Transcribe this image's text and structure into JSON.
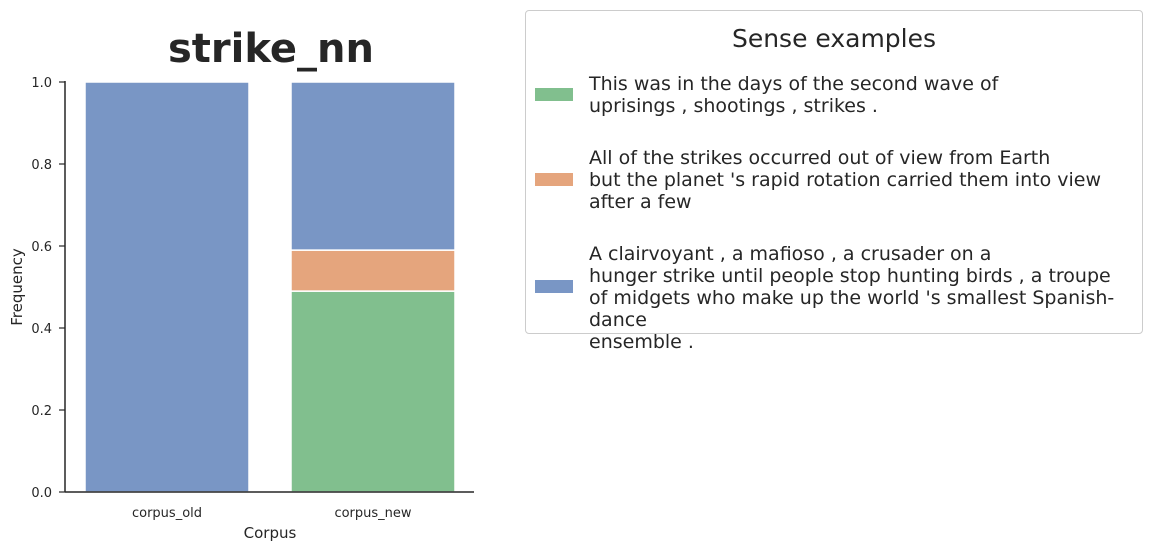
{
  "chart_data": {
    "type": "bar",
    "stacked": true,
    "title": "strike_nn",
    "xlabel": "Corpus",
    "ylabel": "Frequency",
    "ylim": [
      0,
      1.0
    ],
    "yticks": [
      "0.0",
      "0.2",
      "0.4",
      "0.6",
      "0.8",
      "1.0"
    ],
    "categories": [
      "corpus_old",
      "corpus_new"
    ],
    "grid": false,
    "legend_position": "right",
    "series": [
      {
        "values": [
          0.0,
          0.49
        ],
        "color": "#81bf8e"
      },
      {
        "values": [
          0.0,
          0.1
        ],
        "color": "#e5a57d"
      },
      {
        "values": [
          1.0,
          0.41
        ],
        "color": "#7996c5"
      }
    ]
  },
  "legend": {
    "title": "Sense examples",
    "entries": [
      {
        "color": "#81bf8e",
        "text": "This was in the days of the second wave of\nuprisings , shootings , strikes ."
      },
      {
        "color": "#e5a57d",
        "text": "All of the strikes occurred out of view from Earth\nbut the planet 's rapid rotation carried them into view\nafter a few"
      },
      {
        "color": "#7996c5",
        "text": "A clairvoyant , a mafioso , a crusader on a\nhunger strike until people stop hunting birds , a troupe\nof midgets who make up the world 's smallest Spanish-dance\nensemble ."
      }
    ]
  }
}
